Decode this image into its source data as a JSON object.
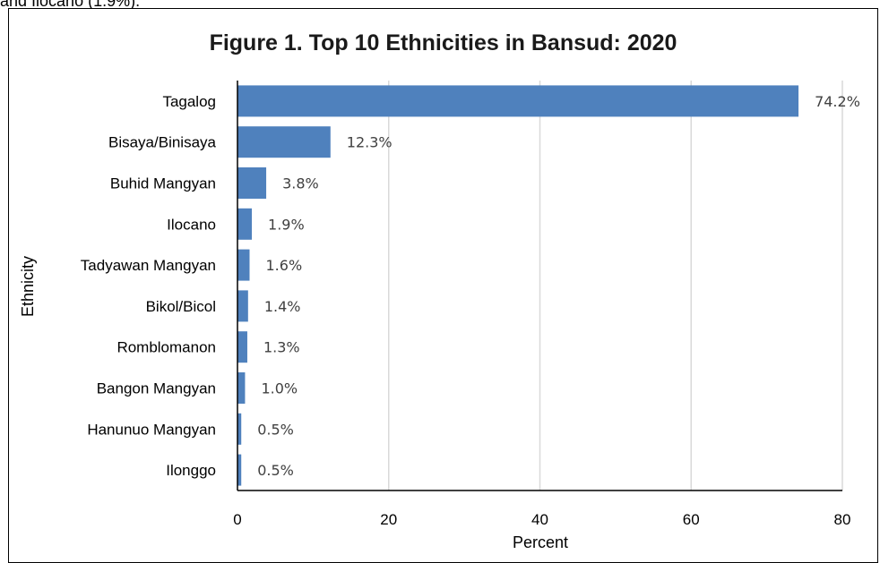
{
  "context_text": "and Ilocano (1.9%).",
  "colors": {
    "bar": "#4f81bd",
    "grid": "#d9d9d9",
    "axis": "#000000"
  },
  "chart_data": {
    "type": "bar",
    "orientation": "horizontal",
    "title": "Figure 1. Top 10 Ethnicities in Bansud: 2020",
    "xlabel": "Percent",
    "ylabel": "Ethnicity",
    "xlim": [
      0,
      80
    ],
    "xticks": [
      "0",
      "20",
      "40",
      "60",
      "80"
    ],
    "grid": "vertical",
    "categories": [
      "Tagalog",
      "Bisaya/Binisaya",
      "Buhid Mangyan",
      "Ilocano",
      "Tadyawan Mangyan",
      "Bikol/Bicol",
      "Romblomanon",
      "Bangon Mangyan",
      "Hanunuo Mangyan",
      "Ilonggo"
    ],
    "values": [
      74.2,
      12.3,
      3.8,
      1.9,
      1.6,
      1.4,
      1.3,
      1.0,
      0.5,
      0.5
    ],
    "data_labels": [
      "74.2%",
      "12.3%",
      "3.8%",
      "1.9%",
      "1.6%",
      "1.4%",
      "1.3%",
      "1.0%",
      "0.5%",
      "0.5%"
    ]
  }
}
